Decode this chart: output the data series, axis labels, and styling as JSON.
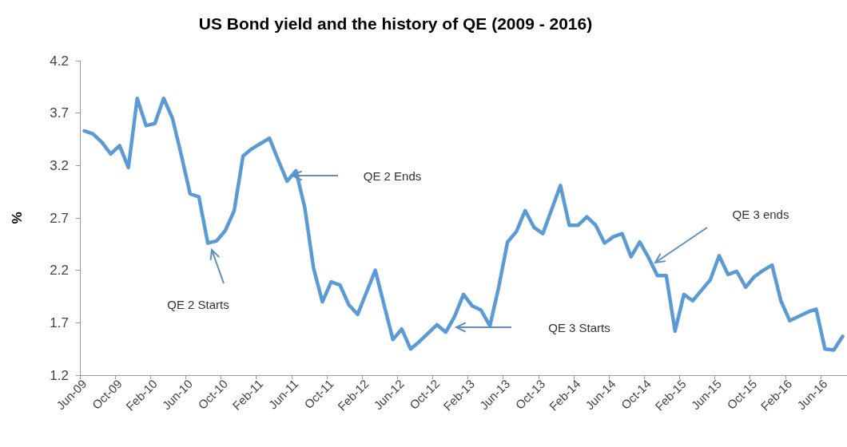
{
  "chart_data": {
    "type": "line",
    "title": "US Bond yield and the history of QE (2009 - 2016)",
    "ylabel": "%",
    "categories": [
      "Jun-09",
      null,
      null,
      null,
      "Oct-09",
      null,
      null,
      null,
      "Feb-10",
      null,
      null,
      null,
      "Jun-10",
      null,
      null,
      null,
      "Oct-10",
      null,
      null,
      null,
      "Feb-11",
      null,
      null,
      null,
      "Jun-11",
      null,
      null,
      null,
      "Oct-11",
      null,
      null,
      null,
      "Feb-12",
      null,
      null,
      null,
      "Jun-12",
      null,
      null,
      null,
      "Oct-12",
      null,
      null,
      null,
      "Feb-13",
      null,
      null,
      null,
      "Jun-13",
      null,
      null,
      null,
      "Oct-13",
      null,
      null,
      null,
      "Feb-14",
      null,
      null,
      null,
      "Jun-14",
      null,
      null,
      null,
      "Oct-14",
      null,
      null,
      null,
      "Feb-15",
      null,
      null,
      null,
      "Jun-15",
      null,
      null,
      null,
      "Oct-15",
      null,
      null,
      null,
      "Feb-16",
      null,
      null,
      null,
      "Jun-16",
      null,
      null
    ],
    "series": [
      {
        "color": "#5b9bd5",
        "values": [
          3.53,
          3.5,
          3.42,
          3.31,
          3.39,
          3.18,
          3.84,
          3.58,
          3.6,
          3.84,
          3.65,
          3.3,
          2.93,
          2.9,
          2.46,
          2.48,
          2.58,
          2.77,
          3.29,
          3.36,
          3.41,
          3.46,
          3.25,
          3.05,
          3.15,
          2.8,
          2.22,
          1.9,
          2.09,
          2.06,
          1.87,
          1.78,
          1.99,
          2.2,
          1.87,
          1.54,
          1.64,
          1.45,
          1.52,
          1.6,
          1.68,
          1.61,
          1.76,
          1.97,
          1.86,
          1.82,
          1.67,
          2.04,
          2.47,
          2.57,
          2.77,
          2.61,
          2.55,
          2.78,
          3.01,
          2.63,
          2.63,
          2.71,
          2.63,
          2.46,
          2.52,
          2.55,
          2.33,
          2.47,
          2.32,
          2.15,
          2.15,
          1.62,
          1.97,
          1.91,
          2.01,
          2.11,
          2.34,
          2.16,
          2.19,
          2.04,
          2.14,
          2.2,
          2.25,
          1.91,
          1.72,
          1.76,
          1.8,
          1.83,
          1.45,
          1.44,
          1.57
        ]
      }
    ],
    "ylim": [
      1.2,
      4.2
    ],
    "yticks": [
      1.2,
      1.7,
      2.2,
      2.7,
      3.2,
      3.7,
      4.2
    ],
    "annotations": [
      "QE 2 Starts",
      "QE 2 Ends",
      "QE 3 Starts",
      "QE 3 ends"
    ],
    "grid": false,
    "marker": "none",
    "line_style": "solid"
  }
}
